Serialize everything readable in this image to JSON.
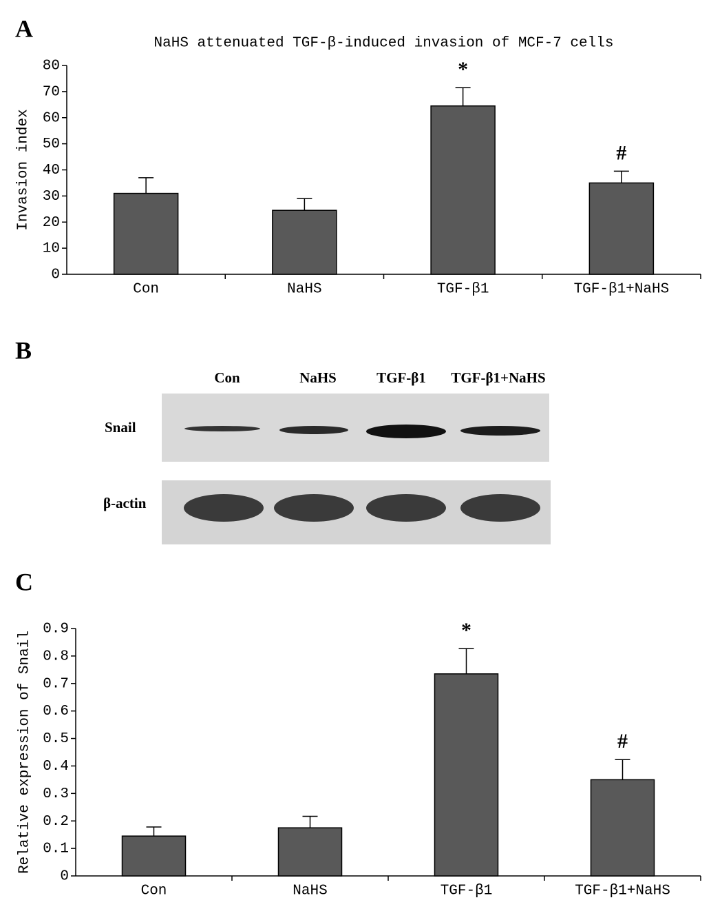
{
  "chart_data": [
    {
      "type": "bar",
      "panel_label": "A",
      "title": "NaHS attenuated TGF-β-induced invasion of MCF-7 cells",
      "y_label": "Invasion index",
      "categories": [
        "Con",
        "NaHS",
        "TGF-β1",
        "TGF-β1+NaHS"
      ],
      "values": [
        31,
        24.5,
        64.5,
        35
      ],
      "errors": [
        6,
        4.5,
        7,
        4.5
      ],
      "annotations": [
        null,
        null,
        "*",
        "#"
      ],
      "color": "#595959",
      "ylim": [
        0,
        80
      ],
      "yticks": [
        0,
        10,
        20,
        30,
        40,
        50,
        60,
        70,
        80
      ]
    },
    {
      "type": "bar",
      "panel_label": "C",
      "y_label": "Relative expression of Snail",
      "categories": [
        "Con",
        "NaHS",
        "TGF-β1",
        "TGF-β1+NaHS"
      ],
      "values": [
        0.145,
        0.175,
        0.735,
        0.35
      ],
      "errors": [
        0.033,
        0.042,
        0.092,
        0.073
      ],
      "annotations": [
        null,
        null,
        "*",
        "#"
      ],
      "color": "#595959",
      "ylim": [
        0,
        0.9
      ],
      "yticks": [
        0,
        0.1,
        0.2,
        0.3,
        0.4,
        0.5,
        0.6,
        0.7,
        0.8,
        0.9
      ]
    }
  ],
  "blot": {
    "panel_label": "B",
    "lanes": [
      "Con",
      "NaHS",
      "TGF-β1",
      "TGF-β1+NaHS"
    ],
    "rows": [
      "Snail",
      "β-actin"
    ]
  }
}
